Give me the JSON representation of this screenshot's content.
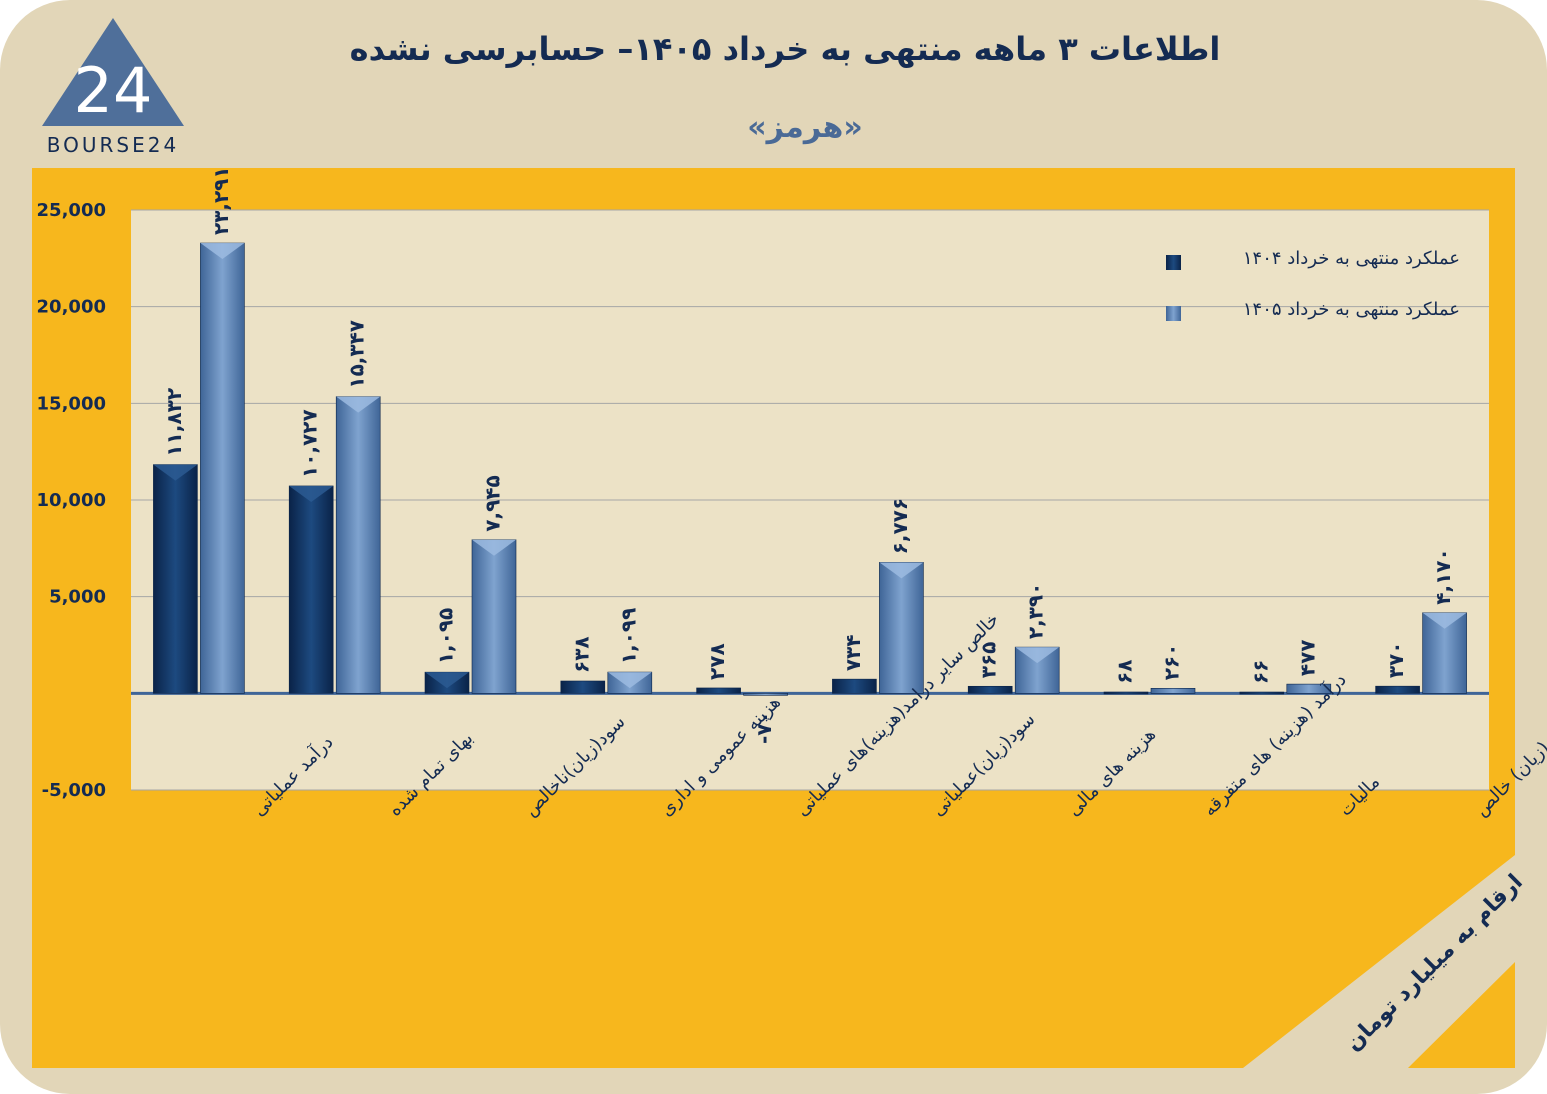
{
  "header": {
    "title": "اطلاعات ۳  ماهه منتهی به خرداد  ۱۴۰۵– حسابرسی نشده",
    "subtitle": "«هرمز»",
    "logo_text": "BOURSE24",
    "logo_mark": "24"
  },
  "units_note": "ارقام به میلیارد تومان",
  "colors": {
    "frame": "#e2d6b8",
    "panel": "#f7b71d",
    "plot": "#ece2c6",
    "series_1404": "#0f2e57",
    "series_1405": "#4f78ad",
    "text": "#142b52"
  },
  "chart_data": {
    "type": "bar",
    "categories": [
      "درآمد عملیاتی",
      "بهای تمام شده",
      "سود(زیان)ناخالص",
      "هزینه عمومی و اداری",
      "خالص سایر درامد(هزینه)های عملیاتی",
      "سود(زیان)عملیاتی",
      "هزینه های مالی",
      "درآمد (هزینه) های متفرقه",
      "مالیات",
      "سود(زیان) خالص"
    ],
    "series": [
      {
        "name": "عملکرد منتهی به خرداد ۱۴۰۴",
        "values": [
          11832,
          10727,
          1095,
          638,
          278,
          734,
          365,
          68,
          66,
          370
        ],
        "labels": [
          "۱۱,۸۳۲",
          "۱۰,۷۲۷",
          "۱,۰۹۵",
          "۶۳۸",
          "۲۷۸",
          "۷۳۴",
          "۳۶۵",
          "۶۸",
          "۶۶",
          "۳۷۰"
        ]
      },
      {
        "name": "عملکرد منتهی به خرداد ۱۴۰۵",
        "values": [
          23291,
          15347,
          7945,
          1099,
          -70,
          6776,
          2390,
          260,
          477,
          4170
        ],
        "labels": [
          "۲۳,۲۹۱",
          "۱۵,۳۴۷",
          "۷,۹۴۵",
          "۱,۰۹۹",
          "-۷۰",
          "۶,۷۷۶",
          "۲,۳۹۰",
          "۲۶۰",
          "۴۷۷",
          "۴,۱۷۰"
        ]
      }
    ],
    "yticks": [
      25000,
      20000,
      15000,
      10000,
      5000,
      0,
      -5000
    ],
    "ytick_labels": [
      "25,000",
      "20,000",
      "15,000",
      "10,000",
      "5,000",
      "",
      "-5,000"
    ],
    "ylim": [
      -5000,
      25000
    ],
    "grid": true,
    "legend_position": "top-right"
  }
}
